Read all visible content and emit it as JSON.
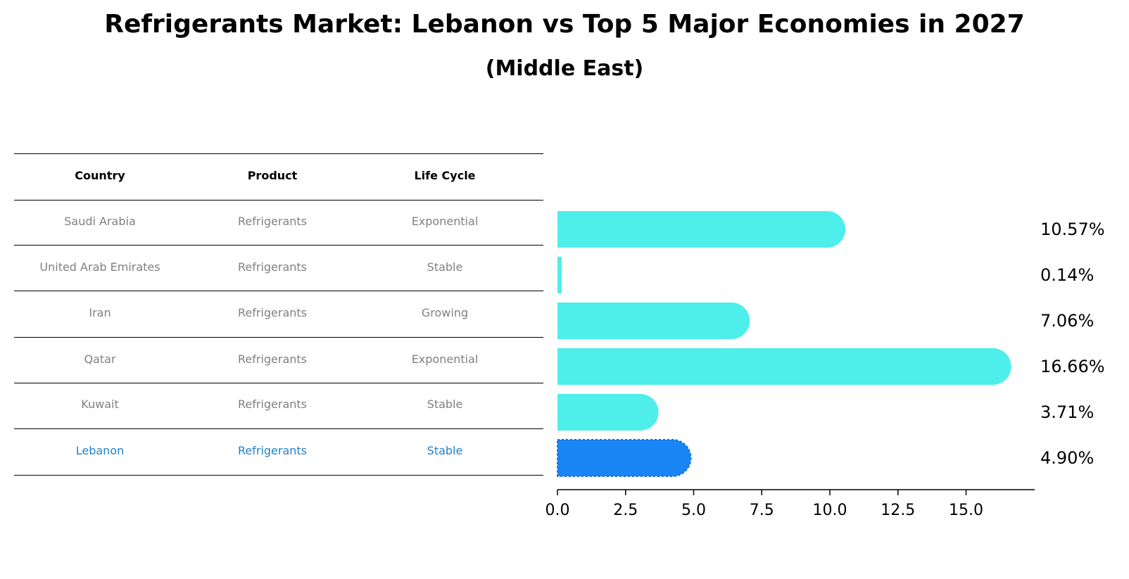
{
  "title": "Refrigerants Market: Lebanon vs Top 5 Major Economies in 2027",
  "subtitle": "(Middle East)",
  "table": {
    "headers": [
      "Country",
      "Product",
      "Life Cycle"
    ],
    "rows": [
      [
        "Saudi Arabia",
        "Refrigerants",
        "Exponential"
      ],
      [
        "United Arab Emirates",
        "Refrigerants",
        "Stable"
      ],
      [
        "Iran",
        "Refrigerants",
        "Growing"
      ],
      [
        "Qatar",
        "Refrigerants",
        "Exponential"
      ],
      [
        "Kuwait",
        "Refrigerants",
        "Stable"
      ],
      [
        "Lebanon",
        "Refrigerants",
        "Stable"
      ]
    ],
    "highlight_row": 5,
    "colors": {
      "text": "#808080",
      "highlight": "#1f82cc"
    }
  },
  "chart_data": {
    "type": "bar",
    "orientation": "horizontal",
    "categories": [
      "Saudi Arabia",
      "United Arab Emirates",
      "Iran",
      "Qatar",
      "Kuwait",
      "Lebanon"
    ],
    "values": [
      10.57,
      0.14,
      7.06,
      16.66,
      3.71,
      4.9
    ],
    "value_labels": [
      "10.57%",
      "0.14%",
      "7.06%",
      "16.66%",
      "3.71%",
      "4.90%"
    ],
    "xlim": [
      0,
      17.5
    ],
    "xticks": [
      0,
      2.5,
      5,
      7.5,
      10,
      12.5,
      15
    ],
    "xtick_labels": [
      "0.0",
      "2.5",
      "5.0",
      "7.5",
      "10.0",
      "12.5",
      "15.0"
    ],
    "colors": {
      "default": "#4eeeea",
      "highlight": "#1a85f5"
    },
    "highlight_index": 5,
    "grid": false
  }
}
